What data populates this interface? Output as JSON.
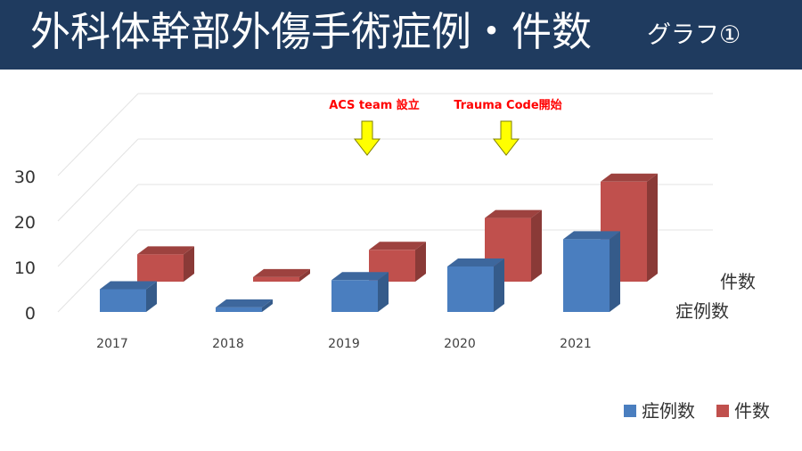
{
  "header": {
    "title": "外科体幹部外傷手術症例・件数",
    "subtitle": "グラフ①"
  },
  "chart_data": {
    "type": "bar",
    "categories": [
      "2017",
      "2018",
      "2019",
      "2020",
      "2021"
    ],
    "series": [
      {
        "name": "症例数",
        "values": [
          5,
          1,
          7,
          10,
          16
        ],
        "color": "#4a7ebf"
      },
      {
        "name": "件数",
        "values": [
          6,
          1,
          7,
          14,
          22
        ],
        "color": "#c0504d"
      }
    ],
    "y_ticks": [
      0,
      10,
      20,
      30
    ],
    "ylim": [
      0,
      30
    ],
    "depth_labels": [
      "件数",
      "症例数"
    ],
    "legend_position": "bottom-right",
    "annotations": [
      {
        "text": "ACS team 設立",
        "x_between": [
          "2019",
          "2020"
        ],
        "color": "#ff0000",
        "arrow_color": "#ffff00"
      },
      {
        "text": "Trauma Code開始",
        "x_between": [
          "2020",
          "2021"
        ],
        "color": "#ff0000",
        "arrow_color": "#ffff00"
      }
    ]
  }
}
